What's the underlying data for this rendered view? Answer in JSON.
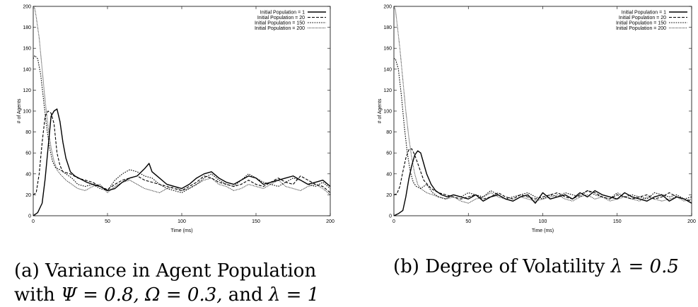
{
  "chart_data": [
    {
      "type": "line",
      "title": "",
      "xlabel": "Time (ms)",
      "ylabel": "# of Agents",
      "xlim": [
        0,
        200
      ],
      "ylim": [
        0,
        200
      ],
      "xticks": [
        0,
        50,
        100,
        150,
        200
      ],
      "yticks": [
        0,
        20,
        40,
        60,
        80,
        100,
        120,
        140,
        160,
        180,
        200
      ],
      "grid": false,
      "legend_position": "top-right",
      "series": [
        {
          "name": "Initial Population = 1",
          "style": "solid",
          "x": [
            0,
            3,
            6,
            8,
            10,
            12,
            14,
            16,
            18,
            20,
            22,
            25,
            28,
            32,
            36,
            40,
            45,
            50,
            55,
            60,
            65,
            70,
            75,
            78,
            80,
            85,
            90,
            95,
            100,
            105,
            110,
            115,
            120,
            125,
            130,
            135,
            140,
            145,
            150,
            155,
            160,
            165,
            170,
            175,
            180,
            185,
            190,
            195,
            200
          ],
          "values": [
            0,
            3,
            12,
            35,
            65,
            95,
            100,
            102,
            90,
            70,
            55,
            42,
            38,
            35,
            32,
            30,
            28,
            24,
            26,
            32,
            36,
            38,
            45,
            50,
            42,
            36,
            30,
            28,
            26,
            30,
            36,
            40,
            42,
            36,
            32,
            30,
            34,
            38,
            36,
            30,
            32,
            34,
            36,
            38,
            34,
            30,
            32,
            34,
            28
          ]
        },
        {
          "name": "Initial Population = 20",
          "style": "dashed",
          "x": [
            0,
            2,
            4,
            6,
            8,
            10,
            12,
            14,
            16,
            18,
            20,
            25,
            30,
            35,
            40,
            45,
            50,
            55,
            60,
            65,
            70,
            75,
            80,
            85,
            90,
            95,
            100,
            105,
            110,
            115,
            120,
            125,
            130,
            135,
            140,
            145,
            150,
            155,
            160,
            165,
            170,
            175,
            180,
            185,
            190,
            195,
            200
          ],
          "values": [
            20,
            22,
            40,
            70,
            95,
            100,
            98,
            88,
            60,
            48,
            42,
            40,
            36,
            34,
            32,
            28,
            25,
            30,
            34,
            36,
            38,
            34,
            32,
            30,
            28,
            26,
            24,
            28,
            32,
            38,
            36,
            32,
            30,
            28,
            30,
            34,
            30,
            28,
            32,
            36,
            32,
            30,
            38,
            34,
            30,
            28,
            22
          ]
        },
        {
          "name": "Initial Population = 150",
          "style": "dotted",
          "x": [
            0,
            1,
            3,
            5,
            7,
            9,
            11,
            13,
            15,
            18,
            22,
            26,
            30,
            35,
            40,
            45,
            50,
            55,
            60,
            65,
            70,
            75,
            80,
            85,
            90,
            95,
            100,
            105,
            110,
            115,
            120,
            125,
            130,
            135,
            140,
            145,
            150,
            155,
            160,
            165,
            170,
            175,
            180,
            185,
            190,
            195,
            200
          ],
          "values": [
            150,
            153,
            150,
            135,
            110,
            85,
            65,
            52,
            46,
            44,
            40,
            36,
            30,
            28,
            30,
            26,
            24,
            34,
            40,
            44,
            42,
            38,
            36,
            30,
            26,
            24,
            22,
            26,
            30,
            36,
            40,
            34,
            30,
            28,
            34,
            40,
            36,
            32,
            30,
            28,
            32,
            36,
            34,
            30,
            28,
            32,
            26
          ]
        },
        {
          "name": "Initial Population = 200",
          "style": "dotted-fine",
          "x": [
            0,
            1,
            2,
            4,
            6,
            8,
            10,
            12,
            14,
            16,
            18,
            22,
            26,
            30,
            35,
            40,
            45,
            50,
            55,
            60,
            65,
            70,
            75,
            80,
            85,
            90,
            95,
            100,
            105,
            110,
            115,
            120,
            125,
            130,
            135,
            140,
            145,
            150,
            155,
            160,
            165,
            170,
            175,
            180,
            185,
            190,
            195,
            200
          ],
          "values": [
            200,
            198,
            190,
            170,
            140,
            110,
            85,
            65,
            52,
            44,
            40,
            34,
            30,
            26,
            24,
            28,
            30,
            22,
            28,
            32,
            34,
            30,
            26,
            24,
            22,
            26,
            28,
            24,
            26,
            30,
            34,
            36,
            30,
            28,
            24,
            26,
            30,
            28,
            26,
            30,
            34,
            28,
            26,
            24,
            28,
            30,
            26,
            20
          ]
        }
      ]
    },
    {
      "type": "line",
      "title": "",
      "xlabel": "Time (ms)",
      "ylabel": "# of Agents",
      "xlim": [
        0,
        200
      ],
      "ylim": [
        0,
        200
      ],
      "xticks": [
        0,
        50,
        100,
        150,
        200
      ],
      "yticks": [
        0,
        20,
        40,
        60,
        80,
        100,
        120,
        140,
        160,
        180,
        200
      ],
      "grid": false,
      "legend_position": "top-right",
      "series": [
        {
          "name": "Initial Population = 1",
          "style": "solid",
          "x": [
            0,
            3,
            6,
            8,
            10,
            12,
            14,
            16,
            18,
            20,
            22,
            25,
            28,
            32,
            36,
            40,
            45,
            50,
            55,
            60,
            65,
            70,
            75,
            80,
            85,
            90,
            95,
            100,
            105,
            110,
            115,
            120,
            125,
            130,
            135,
            140,
            145,
            150,
            155,
            160,
            165,
            170,
            175,
            180,
            185,
            190,
            195,
            200
          ],
          "values": [
            0,
            2,
            5,
            18,
            35,
            48,
            58,
            62,
            60,
            50,
            40,
            30,
            24,
            20,
            18,
            20,
            18,
            16,
            20,
            14,
            18,
            20,
            16,
            14,
            18,
            20,
            12,
            22,
            16,
            18,
            20,
            16,
            22,
            18,
            24,
            20,
            18,
            16,
            22,
            18,
            16,
            14,
            18,
            20,
            14,
            18,
            16,
            12
          ]
        },
        {
          "name": "Initial Population = 20",
          "style": "dashed",
          "x": [
            0,
            2,
            4,
            6,
            8,
            10,
            12,
            14,
            16,
            18,
            20,
            25,
            30,
            35,
            40,
            45,
            50,
            55,
            60,
            65,
            70,
            75,
            80,
            85,
            90,
            95,
            100,
            105,
            110,
            115,
            120,
            125,
            130,
            135,
            140,
            145,
            150,
            155,
            160,
            165,
            170,
            175,
            180,
            185,
            190,
            195,
            200
          ],
          "values": [
            20,
            21,
            28,
            42,
            55,
            63,
            64,
            58,
            50,
            42,
            34,
            26,
            22,
            20,
            18,
            16,
            18,
            20,
            16,
            18,
            22,
            18,
            16,
            20,
            18,
            16,
            18,
            20,
            22,
            18,
            16,
            20,
            24,
            22,
            18,
            16,
            20,
            18,
            16,
            18,
            20,
            16,
            18,
            22,
            18,
            16,
            14
          ]
        },
        {
          "name": "Initial Population = 150",
          "style": "dotted",
          "x": [
            0,
            1,
            3,
            5,
            7,
            9,
            11,
            13,
            15,
            18,
            22,
            26,
            30,
            35,
            40,
            45,
            50,
            55,
            60,
            65,
            70,
            75,
            80,
            85,
            90,
            95,
            100,
            105,
            110,
            115,
            120,
            125,
            130,
            135,
            140,
            145,
            150,
            155,
            160,
            165,
            170,
            175,
            180,
            185,
            190,
            195,
            200
          ],
          "values": [
            150,
            150,
            140,
            115,
            85,
            60,
            42,
            32,
            28,
            26,
            30,
            22,
            18,
            16,
            20,
            18,
            22,
            20,
            18,
            24,
            20,
            16,
            18,
            20,
            22,
            18,
            16,
            20,
            18,
            22,
            20,
            18,
            24,
            20,
            18,
            16,
            22,
            18,
            20,
            18,
            16,
            22,
            20,
            18,
            20,
            16,
            18
          ]
        },
        {
          "name": "Initial Population = 200",
          "style": "dotted-fine",
          "x": [
            0,
            1,
            2,
            4,
            6,
            8,
            10,
            12,
            14,
            16,
            18,
            22,
            26,
            30,
            35,
            40,
            45,
            50,
            55,
            60,
            65,
            70,
            75,
            80,
            85,
            90,
            95,
            100,
            105,
            110,
            115,
            120,
            125,
            130,
            135,
            140,
            145,
            150,
            155,
            160,
            165,
            170,
            175,
            180,
            185,
            190,
            195,
            200
          ],
          "values": [
            200,
            197,
            185,
            160,
            130,
            100,
            75,
            55,
            40,
            30,
            26,
            22,
            20,
            18,
            16,
            18,
            14,
            12,
            16,
            18,
            22,
            18,
            16,
            14,
            18,
            16,
            14,
            16,
            18,
            20,
            16,
            14,
            18,
            20,
            16,
            18,
            14,
            16,
            18,
            16,
            14,
            18,
            16,
            14,
            16,
            18,
            14,
            16
          ]
        }
      ]
    }
  ],
  "captions": {
    "a": {
      "line1": "(a) Variance in Agent Population",
      "line2_prefix": "with",
      "psi": "Ψ = 0.8,",
      "omega": "Ω = 0.3,",
      "and": "and",
      "lambda": "λ = 1"
    },
    "b": {
      "prefix": "(b) Degree of Volatility",
      "lambda": "λ = 0.5"
    }
  }
}
